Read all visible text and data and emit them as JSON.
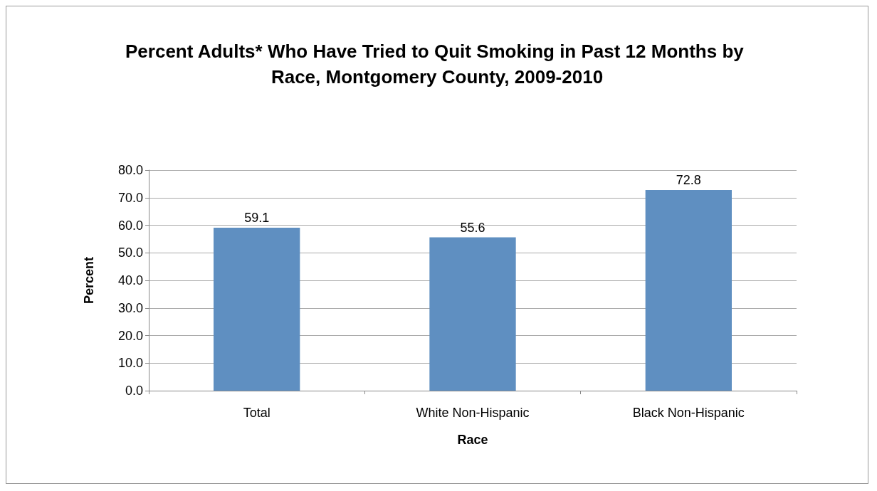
{
  "chart_data": {
    "type": "bar",
    "title": "Percent Adults* Who Have Tried to Quit Smoking in Past 12 Months by Race, Montgomery County, 2009-2010",
    "xlabel": "Race",
    "ylabel": "Percent",
    "categories": [
      "Total",
      "White Non-Hispanic",
      "Black Non-Hispanic"
    ],
    "values": [
      59.1,
      55.6,
      72.8
    ],
    "color": "#5f8fc1",
    "data_labels": true,
    "ylim": [
      0,
      80
    ],
    "yticks": [
      {
        "value": 0,
        "label": "0.0"
      },
      {
        "value": 10,
        "label": "10.0"
      },
      {
        "value": 20,
        "label": "20.0"
      },
      {
        "value": 30,
        "label": "30.0"
      },
      {
        "value": 40,
        "label": "40.0"
      },
      {
        "value": 50,
        "label": "50.0"
      },
      {
        "value": 60,
        "label": "60.0"
      },
      {
        "value": 70,
        "label": "70.0"
      },
      {
        "value": 80,
        "label": "80.0"
      }
    ],
    "grid": "y"
  }
}
